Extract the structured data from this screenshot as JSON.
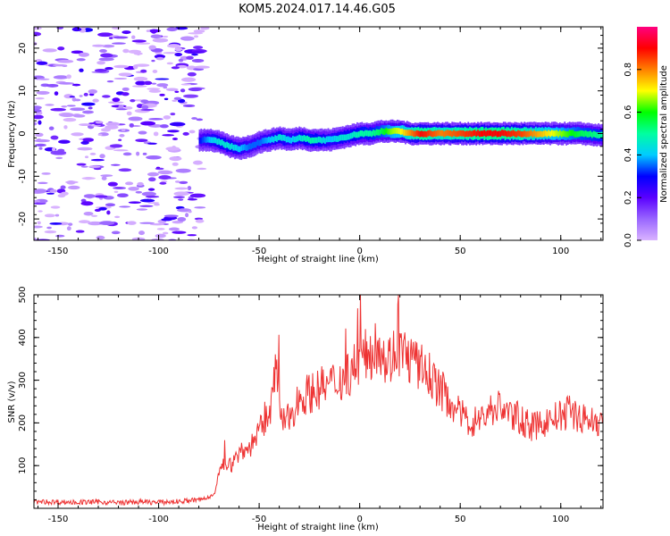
{
  "title": "KOM5.2024.017.14.46.G05",
  "chart_data": [
    {
      "type": "heatmap",
      "xlabel": "Height of straight line (km)",
      "ylabel": "Frequency (Hz)",
      "xlim": [
        -162,
        121
      ],
      "ylim": [
        -25,
        25
      ],
      "xticks": [
        -150,
        -100,
        -50,
        0,
        50,
        100
      ],
      "yticks": [
        -20,
        -10,
        0,
        10,
        20
      ],
      "colorbar": {
        "label": "Normalized spectral amplitude",
        "range": [
          0.0,
          1.0
        ],
        "ticks": [
          "0.0",
          "0.2",
          "0.4",
          "0.6",
          "0.8"
        ],
        "colormap": [
          "#d9b3ff",
          "#9966ff",
          "#5a00ff",
          "#0000ff",
          "#00ccff",
          "#00ffa0",
          "#00ff00",
          "#ffff00",
          "#ff8000",
          "#ff0000",
          "#ff0080"
        ]
      },
      "noise_region_x": [
        -162,
        -77
      ],
      "signal_trace": {
        "x": [
          -80,
          -75,
          -70,
          -65,
          -60,
          -55,
          -50,
          -45,
          -40,
          -35,
          -30,
          -25,
          -20,
          -15,
          -10,
          -5,
          0,
          5,
          10,
          15,
          20,
          25,
          30,
          40,
          50,
          60,
          70,
          80,
          90,
          100,
          110,
          121
        ],
        "freq": [
          -1.5,
          -1.5,
          -2.0,
          -3.0,
          -3.5,
          -3.0,
          -2.0,
          -1.5,
          -1.0,
          -1.5,
          -1.0,
          -1.5,
          -1.5,
          -1.5,
          -1.0,
          -0.5,
          0.0,
          0.0,
          0.5,
          0.5,
          0.5,
          0.0,
          0.0,
          0.0,
          0.0,
          0.0,
          0.0,
          0.0,
          0.0,
          0.0,
          0.0,
          -0.5
        ],
        "amplitude": [
          0.3,
          0.4,
          0.45,
          0.45,
          0.4,
          0.35,
          0.35,
          0.4,
          0.45,
          0.4,
          0.45,
          0.5,
          0.45,
          0.4,
          0.45,
          0.45,
          0.5,
          0.5,
          0.55,
          0.65,
          0.7,
          0.8,
          0.9,
          0.8,
          0.85,
          0.9,
          0.9,
          0.85,
          0.75,
          0.65,
          0.55,
          0.5
        ]
      }
    },
    {
      "type": "line",
      "xlabel": "Height of straight line (km)",
      "ylabel": "SNR (v/v)",
      "xlim": [
        -162,
        121
      ],
      "ylim": [
        0,
        500
      ],
      "xticks": [
        -150,
        -100,
        -50,
        0,
        50,
        100
      ],
      "yticks": [
        100,
        200,
        300,
        400,
        500
      ],
      "series": [
        {
          "color": "#ee3333",
          "x": [
            -162,
            -150,
            -140,
            -130,
            -120,
            -110,
            -100,
            -95,
            -90,
            -85,
            -80,
            -75,
            -72,
            -70,
            -67,
            -64,
            -60,
            -55,
            -50,
            -47,
            -45,
            -43,
            -42,
            -40,
            -38,
            -35,
            -30,
            -25,
            -20,
            -15,
            -10,
            -5,
            0,
            5,
            8,
            10,
            13,
            16,
            20,
            25,
            30,
            35,
            40,
            45,
            50,
            55,
            60,
            65,
            70,
            75,
            80,
            85,
            90,
            95,
            100,
            105,
            110,
            115,
            121
          ],
          "y": [
            15,
            15,
            14,
            15,
            13,
            15,
            14,
            15,
            16,
            18,
            20,
            25,
            40,
            80,
            110,
            100,
            130,
            140,
            180,
            200,
            230,
            260,
            330,
            250,
            200,
            210,
            260,
            270,
            280,
            290,
            300,
            320,
            350,
            360,
            380,
            390,
            340,
            360,
            370,
            350,
            330,
            310,
            280,
            250,
            220,
            200,
            210,
            230,
            240,
            220,
            210,
            190,
            195,
            210,
            215,
            230,
            210,
            205,
            200
          ]
        }
      ]
    }
  ]
}
